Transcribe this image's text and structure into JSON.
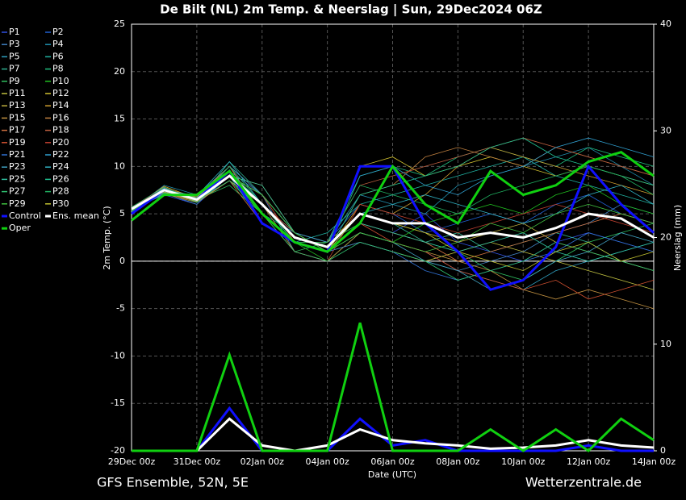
{
  "chart_data": {
    "type": "line",
    "title": "De Bilt  (NL)  2m Temp. & Neerslag | Sun, 29Dec2024 06Z",
    "xlabel": "Date (UTC)",
    "ylabel": "2m Temp. (°C)",
    "y2label": "Neerslag (mm)",
    "source_left": "GFS Ensemble, 52N, 5E",
    "source_right": "Wetterzentrale.de",
    "grid": true,
    "legend": "left",
    "x": [
      0,
      1,
      2,
      3,
      4,
      5,
      6,
      7,
      8,
      9,
      10,
      11,
      12,
      13,
      14,
      15,
      16
    ],
    "xlim": [
      0,
      16
    ],
    "xticks": [
      {
        "value": 0,
        "label": "29Dec 00z"
      },
      {
        "value": 2,
        "label": "31Dec 00z"
      },
      {
        "value": 4,
        "label": "02Jan 00z"
      },
      {
        "value": 6,
        "label": "04Jan 00z"
      },
      {
        "value": 8,
        "label": "06Jan 00z"
      },
      {
        "value": 10,
        "label": "08Jan 00z"
      },
      {
        "value": 12,
        "label": "10Jan 00z"
      },
      {
        "value": 14,
        "label": "12Jan 00z"
      },
      {
        "value": 16,
        "label": "14Jan 00z"
      }
    ],
    "ylim": [
      -20,
      25
    ],
    "yticks": [
      -20,
      -15,
      -10,
      -5,
      0,
      5,
      10,
      15,
      20,
      25
    ],
    "y2lim": [
      0,
      40
    ],
    "y2ticks": [
      0,
      10,
      20,
      30,
      40
    ],
    "series": [
      {
        "name": "P1",
        "color": "#3050e0",
        "values": [
          5.5,
          7,
          6,
          9,
          5,
          2,
          1,
          4,
          3,
          5,
          2,
          1,
          0,
          2,
          3,
          2,
          1
        ]
      },
      {
        "name": "P2",
        "color": "#2060d0",
        "values": [
          5.3,
          7.5,
          6.5,
          10,
          6,
          3,
          2,
          6,
          5,
          3,
          4,
          5,
          4,
          6,
          7,
          5,
          4
        ]
      },
      {
        "name": "P3",
        "color": "#4080c0",
        "values": [
          5.6,
          7.2,
          6,
          9.5,
          7,
          1,
          0,
          3,
          2,
          1,
          -1,
          0,
          1,
          3,
          4,
          6,
          5
        ]
      },
      {
        "name": "P4",
        "color": "#2090b0",
        "values": [
          5.4,
          8,
          7,
          10,
          5,
          3,
          2,
          7,
          6,
          5,
          8,
          9,
          10,
          11,
          12,
          10,
          8
        ]
      },
      {
        "name": "P5",
        "color": "#30a0c0",
        "values": [
          5.5,
          7.6,
          6.4,
          8.5,
          6,
          2,
          1,
          2,
          1,
          0,
          -1,
          -2,
          -3,
          -1,
          0,
          1,
          2
        ]
      },
      {
        "name": "P6",
        "color": "#20b0a0",
        "values": [
          5.7,
          7.4,
          6.8,
          9,
          4,
          2,
          3,
          6,
          7,
          8,
          9,
          10,
          11,
          9,
          8,
          7,
          6
        ]
      },
      {
        "name": "P7",
        "color": "#30b090",
        "values": [
          5.2,
          7.8,
          6.2,
          10.5,
          7,
          3,
          1,
          5,
          4,
          2,
          3,
          1,
          2,
          3,
          2,
          0,
          -1
        ]
      },
      {
        "name": "P8",
        "color": "#20c080",
        "values": [
          5.6,
          7,
          6.6,
          9,
          6,
          2,
          1,
          9,
          10,
          9,
          11,
          12,
          11,
          10,
          12,
          11,
          10
        ]
      },
      {
        "name": "P9",
        "color": "#30c060",
        "values": [
          5.5,
          7.3,
          6.5,
          8,
          5,
          1,
          2,
          4,
          3,
          2,
          1,
          -1,
          -2,
          0,
          2,
          3,
          4
        ]
      },
      {
        "name": "P10",
        "color": "#20c020",
        "values": [
          5.4,
          7.6,
          6.3,
          9.5,
          6,
          2,
          0,
          3,
          2,
          4,
          5,
          6,
          5,
          7,
          8,
          6,
          5
        ]
      },
      {
        "name": "P11",
        "color": "#c0c040",
        "values": [
          5.5,
          7.5,
          6.5,
          9,
          7,
          3,
          1,
          2,
          1,
          0,
          1,
          2,
          1,
          0,
          -1,
          -2,
          -3
        ]
      },
      {
        "name": "P12",
        "color": "#d0c030",
        "values": [
          5.3,
          7.7,
          6.7,
          10,
          5,
          2,
          1,
          10,
          11,
          9,
          10,
          11,
          10,
          9,
          10,
          9,
          8
        ]
      },
      {
        "name": "P13",
        "color": "#c0b040",
        "values": [
          5.6,
          7.1,
          6.2,
          8.5,
          6,
          2,
          2,
          5,
          4,
          3,
          2,
          3,
          4,
          2,
          1,
          0,
          -1
        ]
      },
      {
        "name": "P14",
        "color": "#d0a030",
        "values": [
          5.5,
          7.9,
          6.6,
          9,
          8,
          3,
          1,
          6,
          5,
          7,
          10,
          12,
          11,
          10,
          9,
          8,
          7
        ]
      },
      {
        "name": "P15",
        "color": "#c09040",
        "values": [
          5.4,
          7.3,
          6.4,
          9.5,
          6,
          1,
          0,
          3,
          2,
          1,
          0,
          -1,
          -3,
          -4,
          -3,
          -4,
          -5
        ]
      },
      {
        "name": "P16",
        "color": "#c08040",
        "values": [
          5.5,
          7.5,
          6.8,
          10,
          5,
          2,
          1,
          7,
          8,
          11,
          12,
          11,
          10,
          12,
          11,
          10,
          9
        ]
      },
      {
        "name": "P17",
        "color": "#d07040",
        "values": [
          5.7,
          7.2,
          6.3,
          8.5,
          4,
          2,
          1,
          4,
          3,
          2,
          0,
          1,
          2,
          3,
          4,
          5,
          4
        ]
      },
      {
        "name": "P18",
        "color": "#c06040",
        "values": [
          5.3,
          7.6,
          6.5,
          9,
          6,
          3,
          2,
          8,
          9,
          10,
          11,
          12,
          13,
          12,
          11,
          10,
          9
        ]
      },
      {
        "name": "P19",
        "color": "#d05030",
        "values": [
          5.5,
          7.4,
          6.6,
          10,
          7,
          2,
          1,
          4,
          2,
          1,
          -1,
          -2,
          -3,
          -2,
          -4,
          -3,
          -2
        ]
      },
      {
        "name": "P20",
        "color": "#c04030",
        "values": [
          5.6,
          7.8,
          6.4,
          9,
          5,
          1,
          0,
          6,
          5,
          4,
          3,
          4,
          5,
          6,
          5,
          4,
          3
        ]
      },
      {
        "name": "P21",
        "color": "#3070d0",
        "values": [
          5.4,
          7.1,
          6.7,
          9.5,
          6,
          2,
          1,
          2,
          1,
          -1,
          -2,
          -1,
          0,
          1,
          3,
          2,
          1
        ]
      },
      {
        "name": "P22",
        "color": "#30a0d0",
        "values": [
          5.5,
          7.7,
          6.3,
          10,
          7,
          3,
          2,
          9,
          10,
          8,
          7,
          9,
          10,
          12,
          13,
          12,
          11
        ]
      },
      {
        "name": "P23",
        "color": "#40a0c0",
        "values": [
          5.3,
          7.3,
          6.5,
          9,
          5,
          2,
          1,
          3,
          2,
          0,
          -1,
          -3,
          -2,
          0,
          1,
          3,
          2
        ]
      },
      {
        "name": "P24",
        "color": "#30b0c0",
        "values": [
          5.6,
          7.5,
          6.9,
          10.5,
          6,
          2,
          1,
          5,
          6,
          7,
          6,
          5,
          4,
          5,
          7,
          8,
          6
        ]
      },
      {
        "name": "P25",
        "color": "#30c0a0",
        "values": [
          5.5,
          7.6,
          6.2,
          9,
          8,
          3,
          1,
          4,
          3,
          2,
          1,
          2,
          3,
          1,
          0,
          1,
          2
        ]
      },
      {
        "name": "P26",
        "color": "#20c090",
        "values": [
          5.4,
          7.2,
          6.6,
          9.5,
          6,
          2,
          1,
          7,
          8,
          9,
          10,
          12,
          13,
          11,
          10,
          9,
          8
        ]
      },
      {
        "name": "P27",
        "color": "#30c070",
        "values": [
          5.7,
          7.8,
          6.4,
          8.5,
          5,
          1,
          0,
          2,
          1,
          0,
          -2,
          -1,
          0,
          2,
          1,
          0,
          -1
        ]
      },
      {
        "name": "P28",
        "color": "#20b060",
        "values": [
          5.5,
          7.4,
          6.5,
          10,
          6,
          2,
          2,
          8,
          7,
          6,
          5,
          7,
          8,
          9,
          10,
          9,
          7
        ]
      },
      {
        "name": "P29",
        "color": "#40c040",
        "values": [
          5.3,
          7.5,
          6.7,
          9,
          7,
          3,
          1,
          3,
          2,
          1,
          2,
          4,
          3,
          5,
          6,
          5,
          4
        ]
      },
      {
        "name": "P30",
        "color": "#c0c030",
        "values": [
          5.6,
          7.3,
          6.3,
          9.5,
          5,
          2,
          1,
          5,
          4,
          3,
          1,
          0,
          -1,
          1,
          2,
          0,
          1
        ]
      },
      {
        "name": "Control",
        "color": "#1010ff",
        "values": [
          5,
          7.5,
          6.5,
          9.5,
          4,
          2,
          1,
          10,
          10,
          4,
          1,
          -3,
          -2,
          1.5,
          10,
          6,
          3
        ],
        "precip": [
          0,
          0,
          0,
          4,
          0,
          0,
          0,
          3,
          0.5,
          1,
          0,
          0,
          0,
          0,
          0.5,
          0,
          0
        ]
      },
      {
        "name": "Ens. mean",
        "color": "#ffffff",
        "values": [
          5.5,
          7.5,
          6.5,
          9,
          6,
          2.5,
          1.5,
          5,
          4,
          4,
          2.5,
          3,
          2.5,
          3.5,
          5,
          4.5,
          2.5
        ],
        "precip": [
          0,
          0,
          0,
          3,
          0.5,
          0,
          0.5,
          2,
          1,
          0.7,
          0.5,
          0.2,
          0.3,
          0.5,
          1,
          0.5,
          0.3
        ]
      },
      {
        "name": "Oper",
        "color": "#10d010",
        "values": [
          4.3,
          7,
          7,
          9.5,
          5,
          2,
          1,
          4,
          10,
          6,
          4,
          9.5,
          7,
          8,
          10.5,
          11.5,
          9
        ],
        "precip": [
          0,
          0,
          0,
          9,
          0,
          0,
          0,
          12,
          0,
          0,
          0,
          2,
          0,
          2,
          0,
          3,
          1
        ]
      }
    ]
  }
}
